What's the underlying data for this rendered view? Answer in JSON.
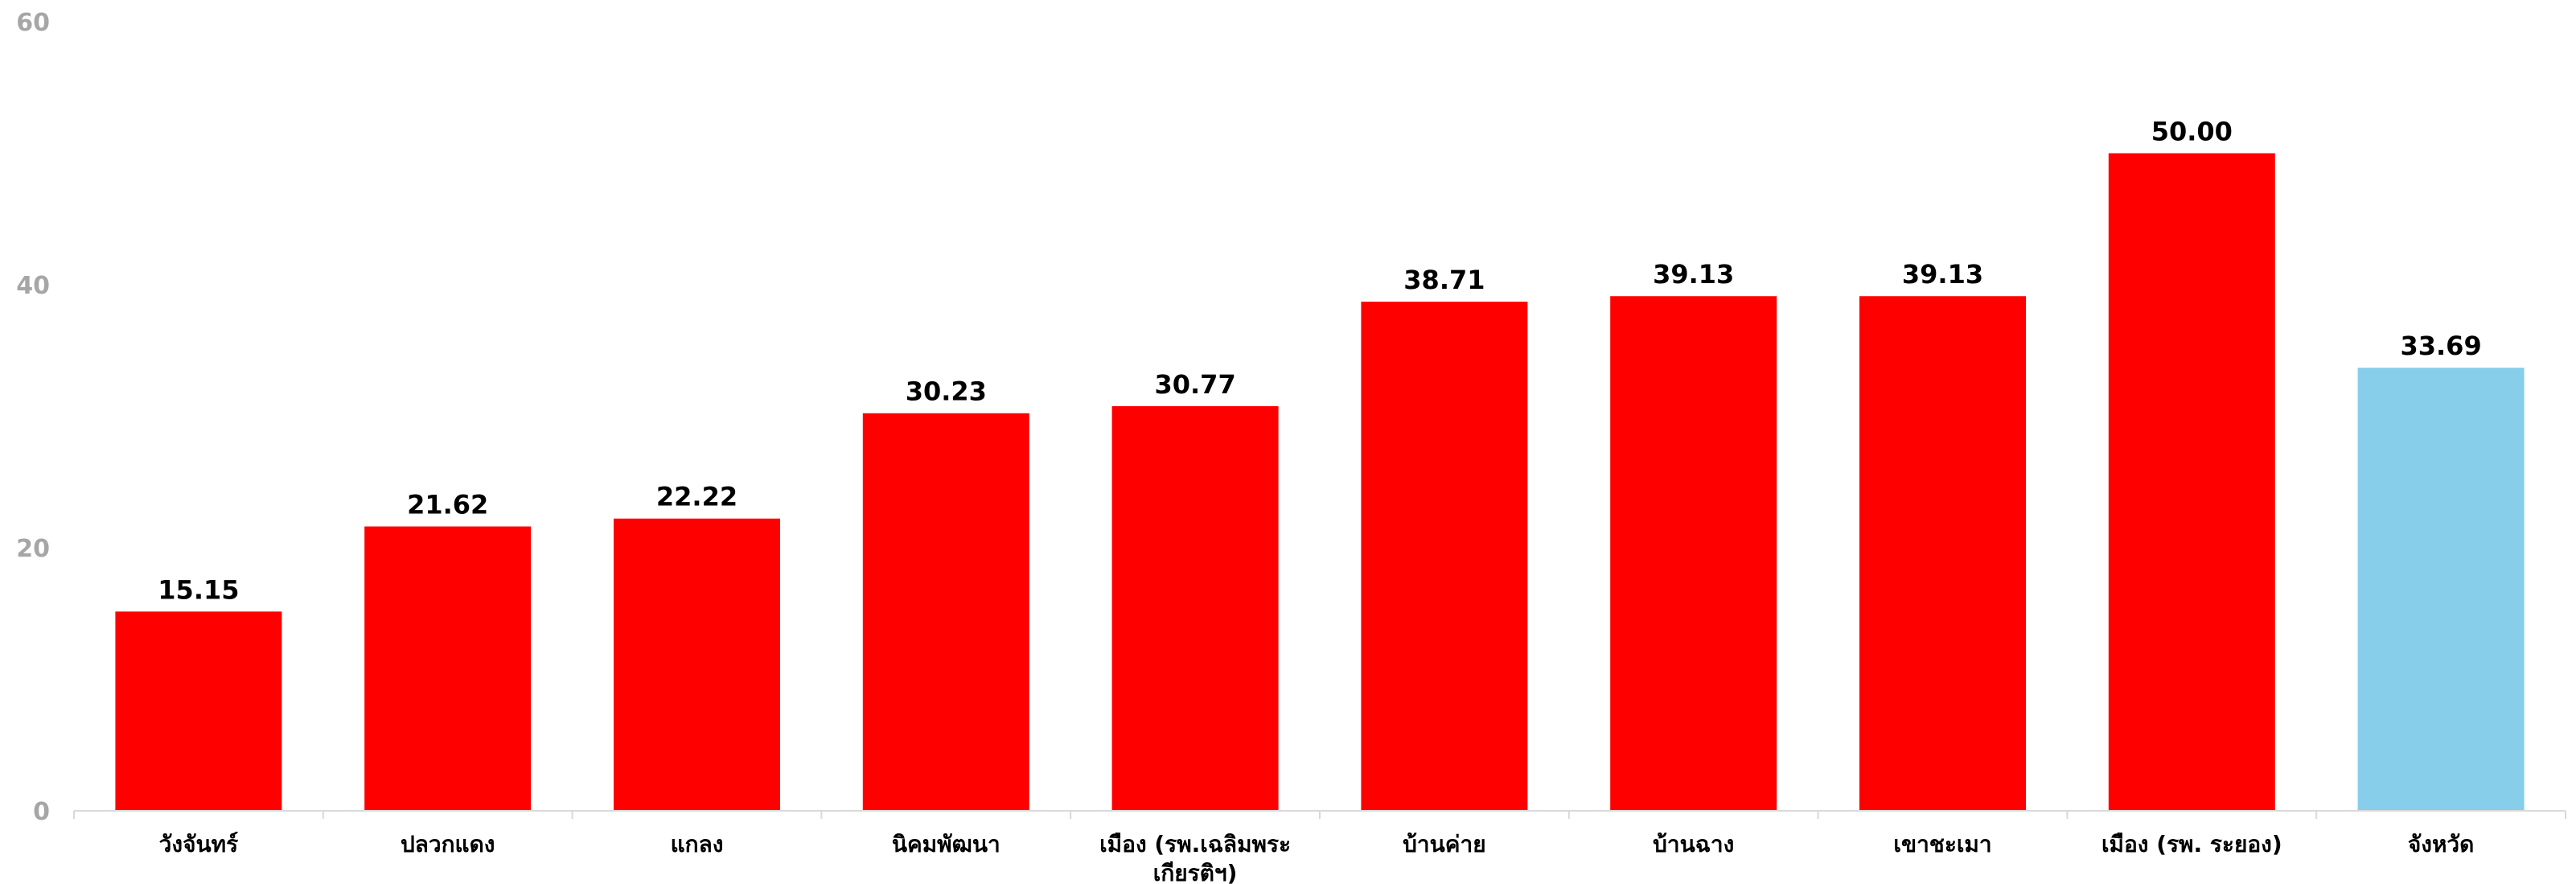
{
  "chart_data": {
    "type": "bar",
    "title": "",
    "xlabel": "",
    "ylabel": "",
    "ylim": [
      0,
      60
    ],
    "yticks": [
      "0",
      "20",
      "40",
      "60"
    ],
    "grid": false,
    "legend": "none",
    "categories": [
      [
        "วังจันทร์"
      ],
      [
        "ปลวกแดง"
      ],
      [
        "แกลง"
      ],
      [
        "นิคมพัฒนา"
      ],
      [
        "เมือง  (รพ.เฉลิมพระ",
        "เกียรติฯ)"
      ],
      [
        "บ้านค่าย"
      ],
      [
        "บ้านฉาง"
      ],
      [
        "เขาชะเมา"
      ],
      [
        "เมือง    (รพ. ระยอง)"
      ],
      [
        "จังหวัด"
      ]
    ],
    "values": [
      15.15,
      21.62,
      22.22,
      30.23,
      30.77,
      38.71,
      39.13,
      39.13,
      50.0,
      33.69
    ],
    "value_labels": [
      "15.15",
      "21.62",
      "22.22",
      "30.23",
      "30.77",
      "38.71",
      "39.13",
      "39.13",
      "50.00",
      "33.69"
    ],
    "colors": {
      "bar": "#ff0000",
      "highlight": "#87ceeb",
      "highlight_index": 9,
      "axis": "#d9d9d9",
      "tick_text": "#a6a6a6",
      "title_text": "#ff0000"
    }
  }
}
